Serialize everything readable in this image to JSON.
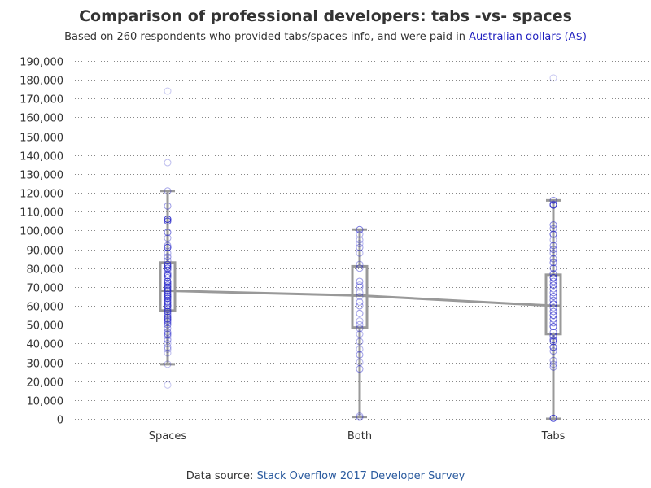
{
  "title": "Comparison of professional developers: tabs -vs- spaces",
  "subtitle": {
    "prefix": "Based on 260 respondents who provided tabs/spaces info, and were paid in ",
    "highlight": "Australian dollars (A$)"
  },
  "footer": {
    "prefix": "Data source: ",
    "highlight": "Stack Overflow 2017 Developer Survey"
  },
  "colors": {
    "box": "#999999",
    "point": "#2020c8",
    "grid": "#888888",
    "text": "#333333",
    "highlight": "#1f1fbf"
  },
  "chart_data": {
    "type": "box",
    "title": "Comparison of professional developers: tabs -vs- spaces",
    "categories": [
      "Spaces",
      "Both",
      "Tabs"
    ],
    "ylim": [
      0,
      190000
    ],
    "yticks": [
      0,
      10000,
      20000,
      30000,
      40000,
      50000,
      60000,
      70000,
      80000,
      90000,
      100000,
      110000,
      120000,
      130000,
      140000,
      150000,
      160000,
      170000,
      180000,
      190000
    ],
    "ytick_labels": [
      "0",
      "10,000",
      "20,000",
      "30,000",
      "40,000",
      "50,000",
      "60,000",
      "70,000",
      "80,000",
      "90,000",
      "100,000",
      "110,000",
      "120,000",
      "130,000",
      "140,000",
      "150,000",
      "160,000",
      "170,000",
      "180,000",
      "190,000"
    ],
    "grid": true,
    "boxes": [
      {
        "category": "Spaces",
        "whisker_low": 29000,
        "q1": 57500,
        "median": 68000,
        "q3": 83000,
        "whisker_high": 121000
      },
      {
        "category": "Both",
        "whisker_low": 1000,
        "q1": 48500,
        "median": 65500,
        "q3": 81000,
        "whisker_high": 100500
      },
      {
        "category": "Tabs",
        "whisker_low": 0,
        "q1": 45000,
        "median": 60000,
        "q3": 76500,
        "whisker_high": 116000
      }
    ],
    "points": [
      {
        "category": "Spaces",
        "values": [
          174000,
          136000,
          121000,
          113000,
          106000,
          105000,
          99000,
          96000,
          92000,
          91000,
          88000,
          86000,
          84000,
          82000,
          81000,
          80000,
          79000,
          77000,
          76000,
          75000,
          73000,
          72000,
          71000,
          70000,
          69000,
          68000,
          67000,
          66000,
          65000,
          64000,
          63000,
          62000,
          61000,
          60000,
          59000,
          58000,
          57000,
          56000,
          55000,
          54000,
          53000,
          52000,
          51000,
          50000,
          48000,
          46000,
          45000,
          44000,
          42000,
          40000,
          38000,
          37000,
          35000,
          29000,
          18000
        ],
        "opacities": [
          0.25,
          0.3,
          0.4,
          0.45,
          0.9,
          0.8,
          0.6,
          0.4,
          0.45,
          0.85,
          0.4,
          0.5,
          0.45,
          0.75,
          0.85,
          0.8,
          0.5,
          0.7,
          0.75,
          0.55,
          0.8,
          0.7,
          0.7,
          0.8,
          0.6,
          0.85,
          0.55,
          0.75,
          0.9,
          0.8,
          0.6,
          0.75,
          0.55,
          0.9,
          0.5,
          0.55,
          0.75,
          0.45,
          0.5,
          0.7,
          0.75,
          0.6,
          0.45,
          0.55,
          0.4,
          0.5,
          0.55,
          0.35,
          0.5,
          0.35,
          0.35,
          0.35,
          0.3,
          0.3,
          0.25
        ]
      },
      {
        "category": "Both",
        "values": [
          100500,
          98000,
          95000,
          93000,
          91000,
          88000,
          82000,
          80000,
          73000,
          71000,
          70000,
          67000,
          65000,
          62000,
          60000,
          56000,
          52000,
          50000,
          48000,
          45000,
          41000,
          37000,
          34000,
          30000,
          26500,
          1500,
          800
        ],
        "opacities": [
          0.6,
          0.4,
          0.4,
          0.35,
          0.45,
          0.35,
          0.4,
          0.45,
          0.45,
          0.35,
          0.45,
          0.4,
          0.35,
          0.4,
          0.45,
          0.45,
          0.35,
          0.4,
          0.4,
          0.35,
          0.4,
          0.35,
          0.45,
          0.35,
          0.45,
          0.35,
          0.35
        ]
      },
      {
        "category": "Tabs",
        "values": [
          181000,
          116000,
          114000,
          113500,
          103000,
          101000,
          98000,
          95000,
          92000,
          90000,
          88000,
          85000,
          83000,
          80000,
          77000,
          75000,
          73000,
          71000,
          69000,
          67000,
          65000,
          63000,
          61000,
          59000,
          57000,
          55000,
          53000,
          51000,
          49000,
          46000,
          44000,
          42000,
          41000,
          38000,
          36000,
          31000,
          29000,
          27500,
          300
        ],
        "opacities": [
          0.25,
          0.5,
          0.6,
          0.9,
          0.55,
          0.45,
          0.8,
          0.4,
          0.5,
          0.55,
          0.45,
          0.5,
          0.6,
          0.55,
          0.6,
          0.8,
          0.55,
          0.7,
          0.5,
          0.6,
          0.7,
          0.6,
          0.75,
          0.55,
          0.6,
          0.7,
          0.6,
          0.55,
          0.8,
          0.55,
          0.7,
          0.8,
          0.55,
          0.8,
          0.45,
          0.45,
          0.4,
          0.45,
          0.8
        ]
      }
    ],
    "mean_line": {
      "connects": "median"
    }
  }
}
